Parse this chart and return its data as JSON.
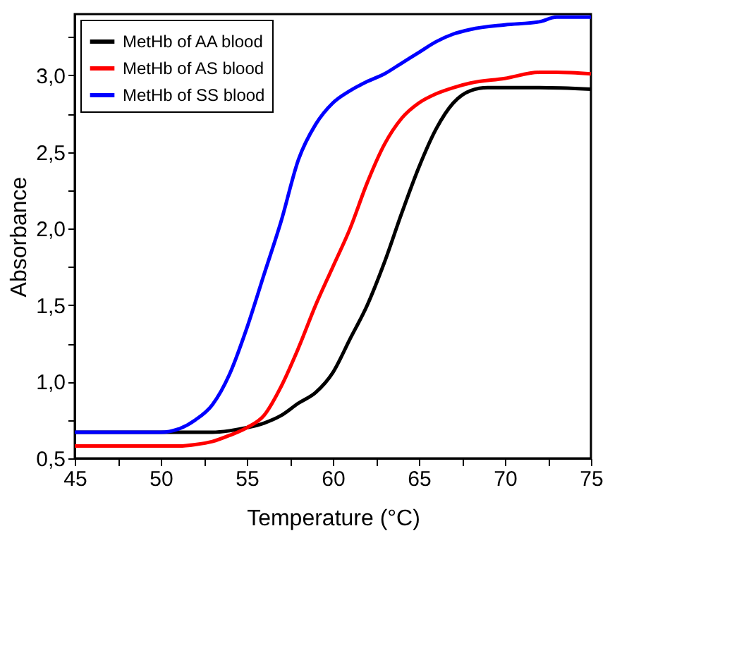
{
  "chart_data": {
    "type": "line",
    "xlabel": "Temperature (°C)",
    "ylabel": "Absorbance",
    "xlim": [
      45,
      75
    ],
    "ylim": [
      0.5,
      3.4
    ],
    "xticks": [
      45,
      {
        "value": 47.5,
        "label": null
      },
      50,
      {
        "value": 52.5,
        "label": null
      },
      55,
      {
        "value": 57.5,
        "label": null
      },
      60,
      {
        "value": 62.5,
        "label": null
      },
      65,
      {
        "value": 67.5,
        "label": null
      },
      70,
      {
        "value": 72.5,
        "label": null
      },
      75
    ],
    "yticks": [
      {
        "value": 0.5,
        "label": "0,5"
      },
      {
        "value": 0.75,
        "label": null
      },
      {
        "value": 1.0,
        "label": "1,0"
      },
      {
        "value": 1.25,
        "label": null
      },
      {
        "value": 1.5,
        "label": "1,5"
      },
      {
        "value": 1.75,
        "label": null
      },
      {
        "value": 2.0,
        "label": "2,0"
      },
      {
        "value": 2.25,
        "label": null
      },
      {
        "value": 2.5,
        "label": "2,5"
      },
      {
        "value": 2.75,
        "label": null
      },
      {
        "value": 3.0,
        "label": "3,0"
      },
      {
        "value": 3.25,
        "label": null
      }
    ],
    "grid": false,
    "legend": "top left",
    "marker": "none",
    "line_style": "solid",
    "series": [
      {
        "name": "MetHb of AA blood",
        "color": "#000000",
        "x": [
          45,
          48,
          51,
          53,
          54,
          55,
          56,
          57,
          58,
          59,
          60,
          61,
          62,
          63,
          64,
          65,
          66,
          67,
          68,
          69,
          70,
          72,
          75
        ],
        "values": [
          0.67,
          0.67,
          0.67,
          0.67,
          0.68,
          0.7,
          0.73,
          0.78,
          0.86,
          0.93,
          1.06,
          1.28,
          1.5,
          1.78,
          2.1,
          2.4,
          2.65,
          2.82,
          2.9,
          2.92,
          2.92,
          2.92,
          2.91
        ]
      },
      {
        "name": "MetHb of AS blood",
        "color": "#ff0000",
        "x": [
          45,
          48,
          51,
          52,
          53,
          54,
          55,
          56,
          57,
          58,
          59,
          60,
          61,
          62,
          63,
          64,
          65,
          66,
          67,
          68,
          70,
          72,
          73,
          75
        ],
        "values": [
          0.58,
          0.58,
          0.58,
          0.59,
          0.61,
          0.65,
          0.7,
          0.78,
          0.97,
          1.22,
          1.5,
          1.75,
          2.0,
          2.3,
          2.55,
          2.72,
          2.82,
          2.88,
          2.92,
          2.95,
          2.98,
          3.02,
          3.02,
          3.01
        ]
      },
      {
        "name": "MetHb of SS blood",
        "color": "#0000ff",
        "x": [
          45,
          48,
          50,
          51,
          52,
          53,
          54,
          55,
          56,
          57,
          58,
          59,
          60,
          61,
          62,
          63,
          64,
          65,
          66,
          67,
          68,
          70,
          72,
          73,
          75
        ],
        "values": [
          0.67,
          0.67,
          0.67,
          0.69,
          0.75,
          0.85,
          1.05,
          1.35,
          1.7,
          2.05,
          2.45,
          2.68,
          2.82,
          2.9,
          2.96,
          3.01,
          3.08,
          3.15,
          3.22,
          3.27,
          3.3,
          3.33,
          3.35,
          3.38,
          3.38
        ]
      }
    ]
  }
}
